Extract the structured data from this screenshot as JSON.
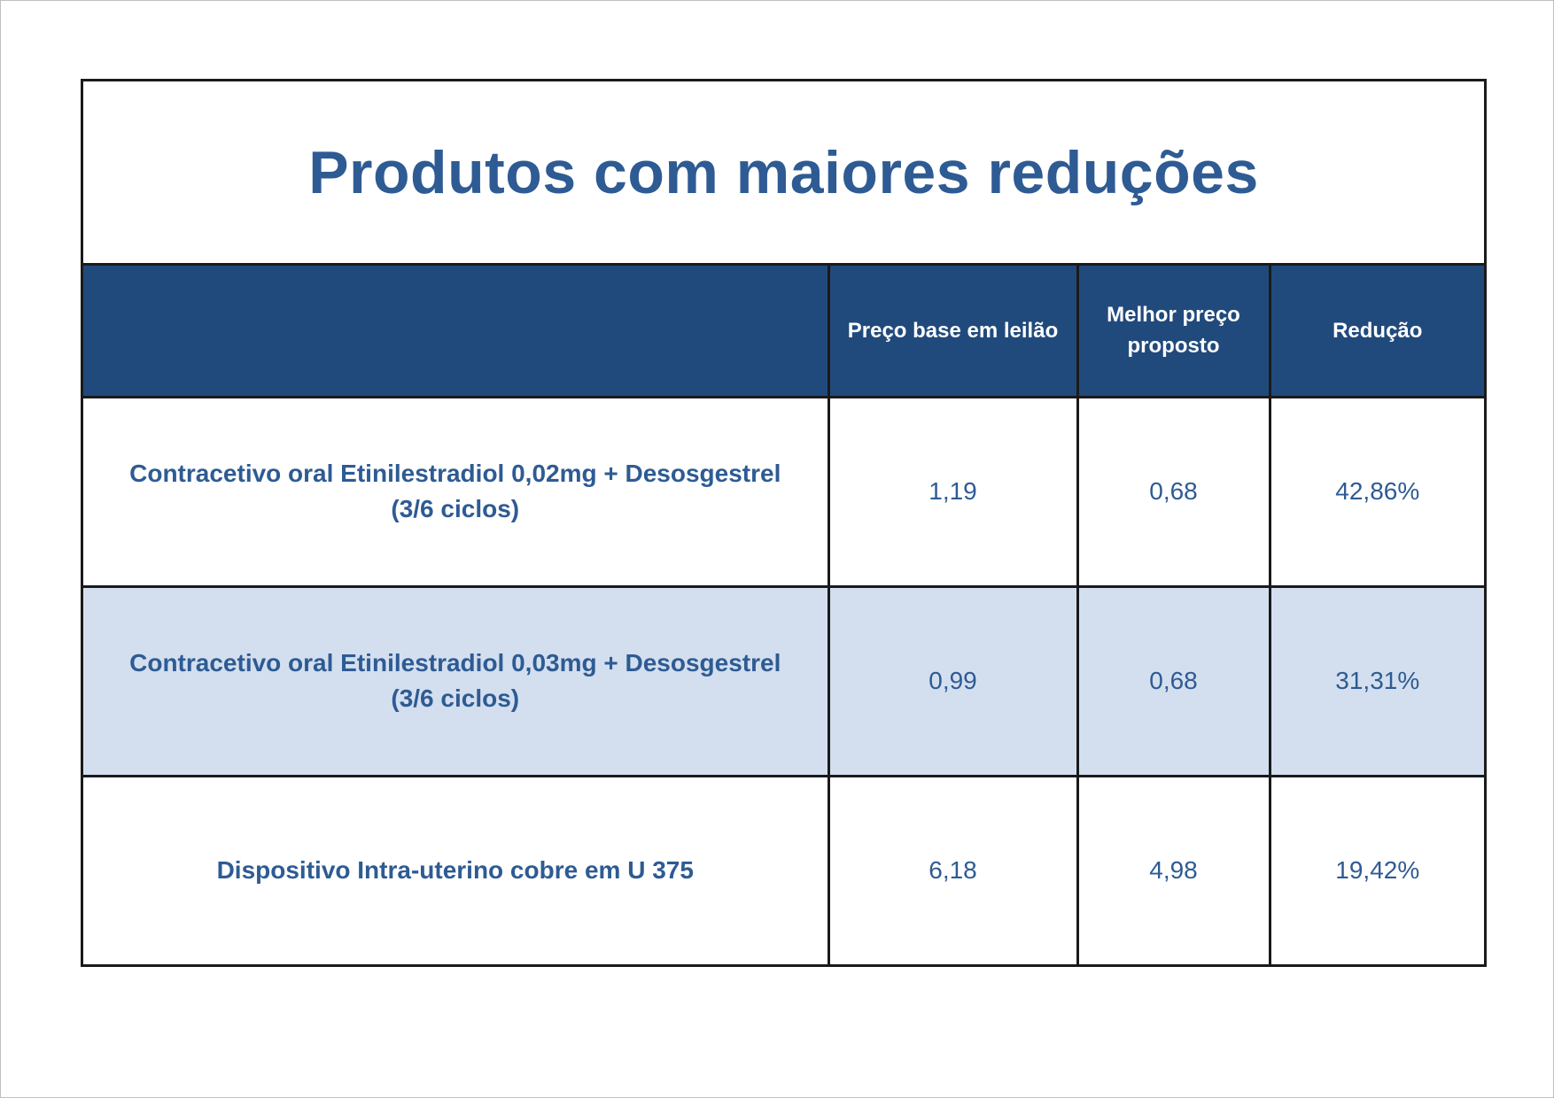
{
  "title": "Produtos com maiores reduções",
  "table": {
    "headers": [
      "",
      "Preço base em leilão",
      "Melhor preço proposto",
      "Redução"
    ],
    "rows": [
      {
        "product": "Contracetivo oral Etinilestradiol 0,02mg + Desosgestrel (3/6 ciclos)",
        "base_price": "1,19",
        "best_price": "0,68",
        "reduction": "42,86%"
      },
      {
        "product": "Contracetivo oral Etinilestradiol 0,03mg + Desosgestrel (3/6 ciclos)",
        "base_price": "0,99",
        "best_price": "0,68",
        "reduction": "31,31%"
      },
      {
        "product": "Dispositivo Intra-uterino cobre em U 375",
        "base_price": "6,18",
        "best_price": "4,98",
        "reduction": "19,42%"
      }
    ]
  },
  "colors": {
    "header_bg": "#214a7c",
    "text_blue": "#2e5b93",
    "alt_row_bg": "#d3dfef",
    "border": "#1a1a1a"
  }
}
